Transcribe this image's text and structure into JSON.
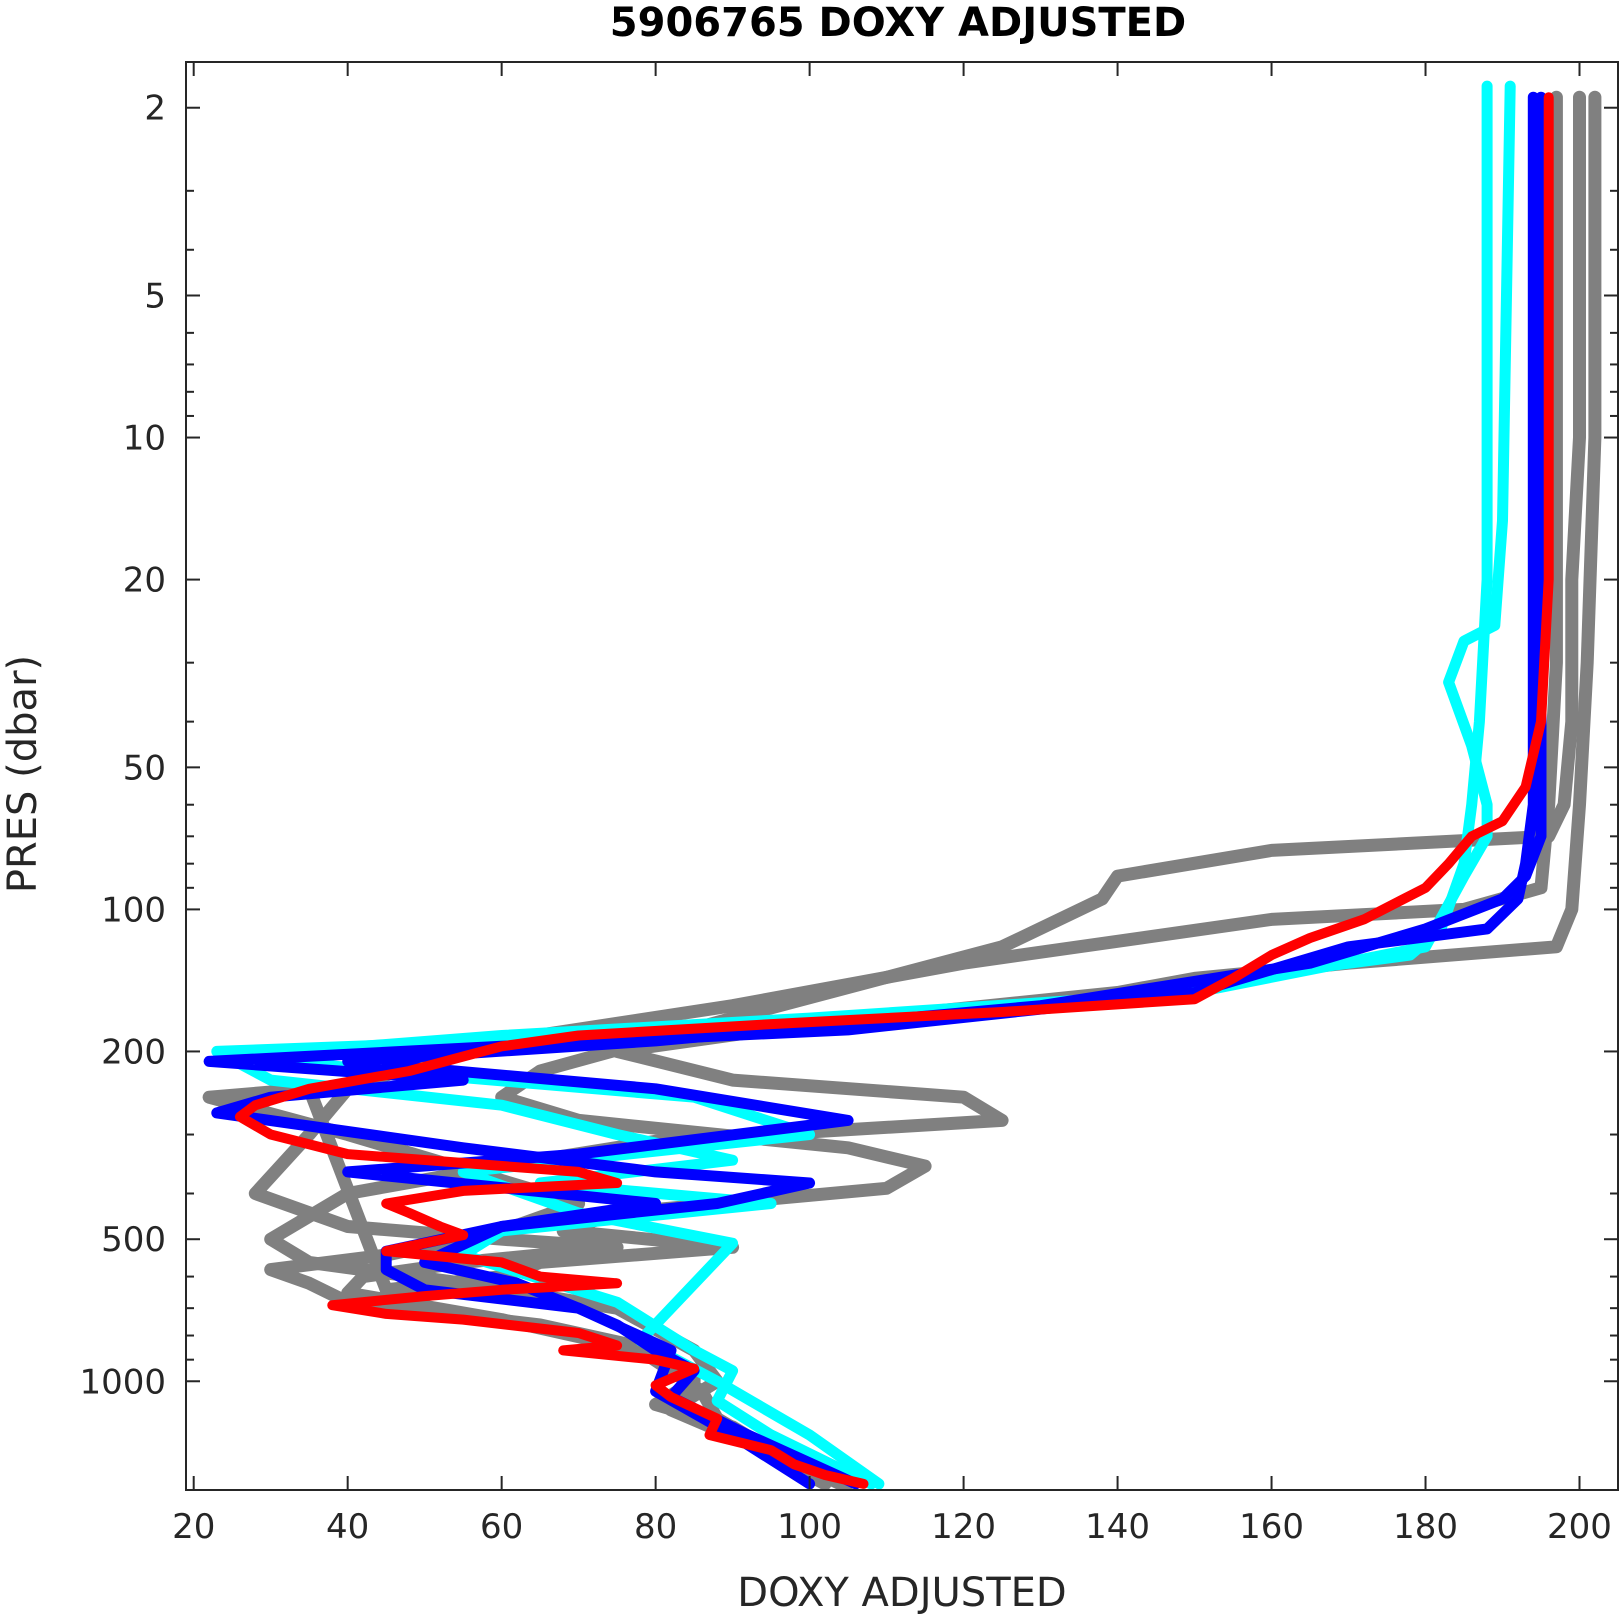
{
  "chart_data": {
    "type": "line",
    "title": "5906765  DOXY ADJUSTED",
    "xlabel": "DOXY ADJUSTED",
    "ylabel": "PRES (dbar)",
    "xlim": [
      19,
      205
    ],
    "ylim": [
      1.6,
      1700
    ],
    "y_scale": "log",
    "y_reversed": true,
    "grid": false,
    "x_ticks": [
      20,
      40,
      60,
      80,
      100,
      120,
      140,
      160,
      180,
      200
    ],
    "y_ticks": [
      2,
      5,
      10,
      20,
      50,
      100,
      200,
      500,
      1000
    ],
    "colors": {
      "gray": "#808080",
      "cyan": "#00ffff",
      "blue": "#0000ff",
      "red": "#ff0000"
    },
    "series": [
      {
        "color": "gray",
        "x": [
          200,
          200,
          200,
          199,
          199,
          198,
          196,
          160,
          140,
          138,
          125,
          90,
          65,
          60,
          70,
          105,
          115,
          110,
          75,
          68,
          90,
          65,
          60,
          45,
          35,
          22,
          40,
          70,
          60,
          45,
          30,
          35,
          40,
          65,
          80,
          85,
          85,
          80,
          90,
          95,
          105
        ],
        "y": [
          1.9,
          5,
          10,
          20,
          40,
          60,
          70,
          75,
          85,
          95,
          120,
          170,
          220,
          250,
          280,
          320,
          350,
          390,
          440,
          480,
          520,
          560,
          600,
          640,
          240,
          250,
          300,
          420,
          480,
          540,
          580,
          620,
          680,
          760,
          860,
          950,
          1000,
          1120,
          1250,
          1400,
          1650
        ]
      },
      {
        "color": "gray",
        "x": [
          202,
          202,
          201,
          200,
          199,
          197,
          170,
          150,
          140,
          100,
          75,
          90,
          120,
          125,
          80,
          60,
          40,
          30,
          35,
          55,
          75,
          85,
          88,
          82,
          92,
          102
        ],
        "y": [
          1.9,
          10,
          30,
          60,
          100,
          120,
          130,
          140,
          150,
          175,
          200,
          230,
          250,
          280,
          310,
          350,
          400,
          500,
          560,
          620,
          700,
          860,
          1000,
          1150,
          1350,
          1650
        ]
      },
      {
        "color": "gray",
        "x": [
          197,
          197,
          197,
          196,
          195,
          185,
          160,
          120,
          90,
          60,
          50,
          40,
          35,
          28,
          40,
          60,
          75,
          55,
          42,
          40,
          60,
          78,
          82,
          86,
          88,
          95,
          104
        ],
        "y": [
          1.9,
          10,
          30,
          60,
          90,
          100,
          105,
          130,
          160,
          190,
          210,
          240,
          300,
          400,
          470,
          500,
          520,
          560,
          600,
          650,
          740,
          860,
          950,
          1050,
          1200,
          1400,
          1650
        ]
      },
      {
        "color": "cyan",
        "x": [
          188,
          188,
          188,
          187,
          186,
          185,
          182,
          178,
          155,
          130,
          60,
          23,
          30,
          60,
          75,
          90,
          65,
          95,
          60,
          55,
          75,
          85,
          90,
          88,
          95,
          108
        ],
        "y": [
          1.8,
          10,
          20,
          40,
          60,
          80,
          110,
          125,
          140,
          160,
          190,
          200,
          230,
          260,
          300,
          340,
          380,
          420,
          480,
          540,
          680,
          860,
          950,
          1100,
          1300,
          1650
        ]
      },
      {
        "color": "cyan",
        "x": [
          191,
          190,
          189,
          185,
          183,
          186,
          188,
          188,
          185,
          180,
          150,
          100,
          60,
          25,
          45,
          85,
          100,
          55,
          70,
          90,
          78,
          88,
          100,
          109
        ],
        "y": [
          1.8,
          15,
          25,
          27,
          33,
          45,
          60,
          70,
          85,
          120,
          150,
          170,
          185,
          205,
          220,
          250,
          300,
          360,
          440,
          510,
          820,
          1000,
          1300,
          1650
        ]
      },
      {
        "color": "blue",
        "x": [
          194,
          194,
          194,
          194,
          193,
          192,
          188,
          170,
          150,
          105,
          60,
          22,
          55,
          30,
          23,
          55,
          80,
          100,
          88,
          60,
          45,
          45,
          50,
          70,
          75,
          80,
          85,
          82,
          92,
          106
        ],
        "y": [
          1.9,
          10,
          30,
          60,
          80,
          95,
          110,
          120,
          150,
          180,
          195,
          210,
          230,
          250,
          270,
          320,
          360,
          380,
          420,
          470,
          530,
          580,
          640,
          700,
          760,
          860,
          950,
          1080,
          1300,
          1650
        ]
      },
      {
        "color": "blue",
        "x": [
          195,
          195,
          195,
          195,
          193,
          190,
          180,
          165,
          130,
          80,
          40,
          80,
          105,
          70,
          40,
          80,
          60,
          50,
          62,
          70,
          82,
          80,
          90,
          100
        ],
        "y": [
          1.9,
          20,
          50,
          70,
          85,
          95,
          110,
          130,
          160,
          190,
          210,
          240,
          280,
          330,
          360,
          420,
          470,
          560,
          620,
          700,
          860,
          1050,
          1300,
          1650
        ]
      },
      {
        "color": "red",
        "x": [
          196,
          196,
          196,
          196,
          195,
          193,
          190,
          186,
          183,
          180,
          172,
          165,
          160,
          155,
          150,
          125,
          95,
          70,
          60,
          55,
          48,
          35,
          28,
          26,
          30,
          40,
          70,
          75,
          55,
          45,
          48,
          52,
          55,
          45,
          60,
          65,
          75,
          60,
          50,
          38,
          45,
          55,
          70,
          75,
          68,
          80,
          85,
          80,
          82,
          88,
          87,
          95,
          98,
          102,
          107
        ],
        "y": [
          1.9,
          5,
          10,
          20,
          40,
          55,
          65,
          70,
          80,
          90,
          105,
          115,
          125,
          140,
          155,
          165,
          175,
          185,
          195,
          205,
          220,
          240,
          260,
          275,
          300,
          330,
          360,
          380,
          395,
          420,
          440,
          470,
          490,
          530,
          560,
          600,
          620,
          640,
          660,
          690,
          720,
          740,
          790,
          840,
          860,
          900,
          940,
          1020,
          1080,
          1200,
          1300,
          1400,
          1500,
          1580,
          1650
        ]
      }
    ]
  }
}
